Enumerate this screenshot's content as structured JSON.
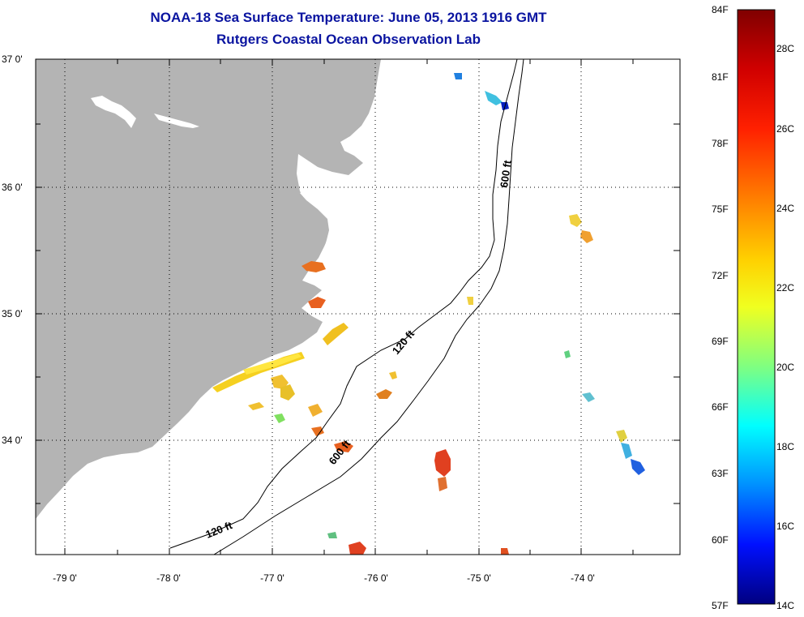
{
  "header": {
    "title": "NOAA-18 Sea Surface Temperature:  June 05, 2013 1916 GMT",
    "subtitle": "Rutgers Coastal Ocean Observation Lab"
  },
  "map": {
    "region": "Outer Banks, North Carolina",
    "land_color": "#b4b4b4",
    "water_color": "#ffffff",
    "grid": "dotted",
    "lat_labels": [
      "37 0'",
      "36 0'",
      "35 0'",
      "34 0'"
    ],
    "lon_labels": [
      "-79 0'",
      "-78 0'",
      "-77 0'",
      "-76 0'",
      "-75 0'",
      "-74 0'"
    ],
    "isobath_labels": {
      "north_600": "600 ft",
      "mid_120": "120 ft",
      "mid_600": "600 ft",
      "south_120": "120 ft"
    }
  },
  "colorbar": {
    "fahrenheit_labels": [
      "84F",
      "81F",
      "78F",
      "75F",
      "72F",
      "69F",
      "66F",
      "63F",
      "60F",
      "57F"
    ],
    "celsius_labels": [
      "28C",
      "26C",
      "24C",
      "22C",
      "20C",
      "18C",
      "16C",
      "14C"
    ],
    "range_f": [
      57,
      84
    ],
    "range_c": [
      14,
      29
    ],
    "colors_top_to_bottom": [
      "#800000",
      "#ff0000",
      "#ff8000",
      "#ffff00",
      "#80ff80",
      "#00ffff",
      "#0080ff",
      "#0000ff",
      "#000080"
    ]
  }
}
